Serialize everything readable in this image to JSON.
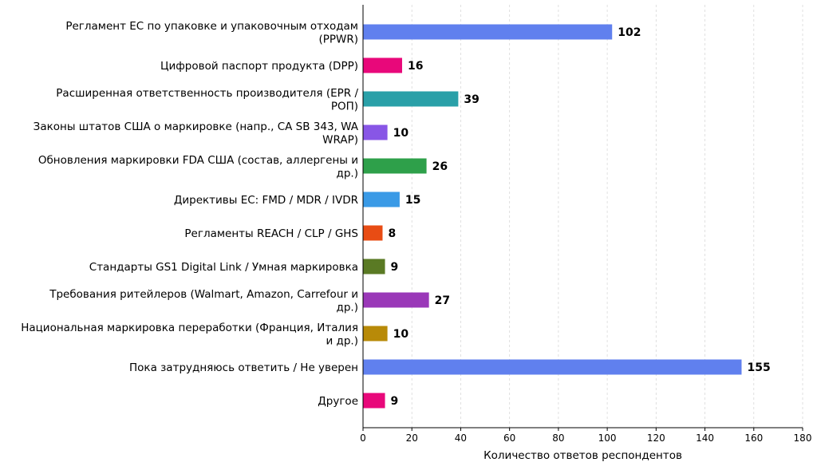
{
  "chart_data": {
    "type": "bar",
    "orientation": "horizontal",
    "title": "",
    "xlabel": "Количество ответов респондентов",
    "ylabel": "",
    "xlim": [
      0,
      180
    ],
    "xticks": [
      0,
      20,
      40,
      60,
      80,
      100,
      120,
      140,
      160,
      180
    ],
    "grid": "vertical dashed",
    "categories": [
      "Регламент ЕС по упаковке и упаковочным отходам (PPWR)",
      "Цифровой паспорт продукта (DPP)",
      "Расширенная ответственность производителя (EPR / РОП)",
      "Законы штатов США о маркировке (напр., CA SB 343, WA WRAP)",
      "Обновления маркировки FDA США (состав, аллергены и др.)",
      "Директивы ЕС: FMD / MDR / IVDR",
      "Регламенты REACH / CLP / GHS",
      "Стандарты GS1 Digital Link / Умная маркировка",
      "Требования ритейлеров (Walmart, Amazon, Carrefour и др.)",
      "Национальная маркировка переработки (Франция, Италия и др.)",
      "Пока затрудняюсь ответить / Не уверен",
      "Другое"
    ],
    "label_lines": [
      [
        "Регламент ЕС по упаковке и упаковочным отходам",
        "(PPWR)"
      ],
      [
        "Цифровой паспорт продукта (DPP)"
      ],
      [
        "Расширенная ответственность производителя (EPR /",
        "РОП)"
      ],
      [
        "Законы штатов США о маркировке (напр., CA SB 343, WA",
        "WRAP)"
      ],
      [
        "Обновления маркировки FDA США (состав, аллергены и",
        "др.)"
      ],
      [
        "Директивы ЕС: FMD / MDR / IVDR"
      ],
      [
        "Регламенты REACH / CLP / GHS"
      ],
      [
        "Стандарты GS1 Digital Link / Умная маркировка"
      ],
      [
        "Требования ритейлеров (Walmart, Amazon, Carrefour и",
        "др.)"
      ],
      [
        "Национальная маркировка переработки (Франция, Италия",
        "и др.)"
      ],
      [
        "Пока затрудняюсь ответить / Не уверен"
      ],
      [
        "Другое"
      ]
    ],
    "values": [
      102,
      16,
      39,
      10,
      26,
      15,
      8,
      9,
      27,
      10,
      155,
      9
    ],
    "colors": [
      "#6080ee",
      "#e8087a",
      "#2aa0a8",
      "#8856e6",
      "#2ea04a",
      "#3a9ae6",
      "#e84c14",
      "#5a7a24",
      "#9a38b8",
      "#b88a08",
      "#6080ee",
      "#e8087a"
    ]
  }
}
